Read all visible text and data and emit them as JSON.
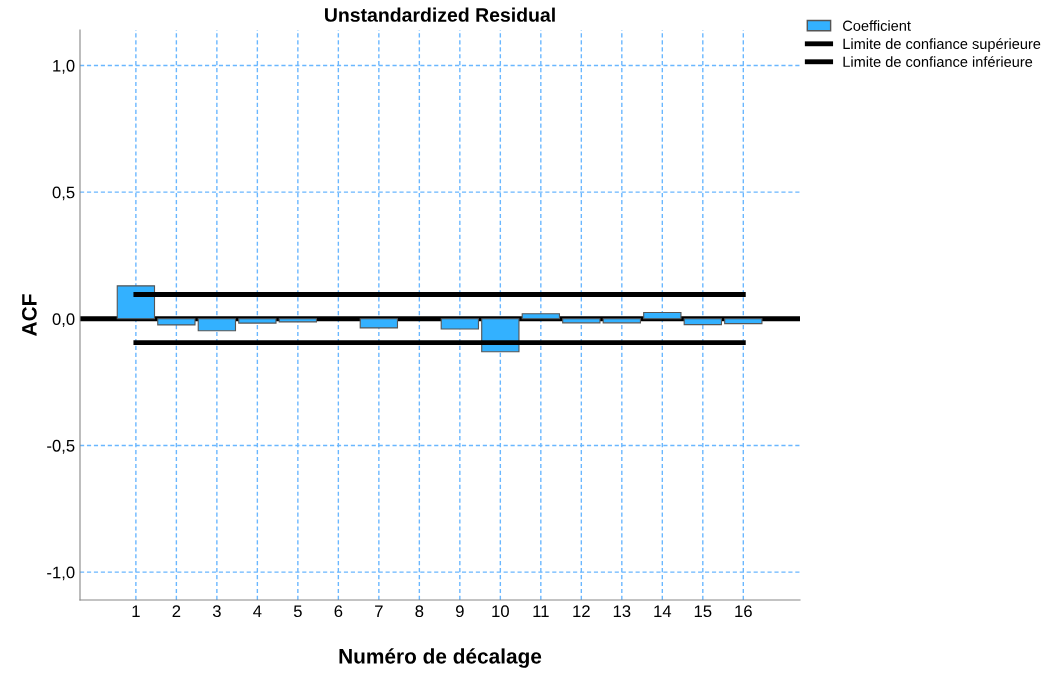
{
  "chart_data": {
    "type": "bar",
    "title": "Unstandardized Residual",
    "xlabel": "Numéro de décalage",
    "ylabel": "ACF",
    "categories": [
      "1",
      "2",
      "3",
      "4",
      "5",
      "6",
      "7",
      "8",
      "9",
      "10",
      "11",
      "12",
      "13",
      "14",
      "15",
      "16"
    ],
    "series": [
      {
        "name": "Coefficient",
        "color": "#33b1ff",
        "values": [
          0.13,
          -0.024,
          -0.047,
          -0.017,
          -0.012,
          null,
          -0.036,
          null,
          -0.04,
          -0.13,
          0.02,
          -0.016,
          -0.016,
          0.025,
          -0.023,
          -0.019
        ]
      },
      {
        "name": "Limite de confiance supérieure",
        "type": "line",
        "color": "#000000",
        "values": [
          0.096,
          0.096,
          0.096,
          0.096,
          0.096,
          0.096,
          0.096,
          0.096,
          0.096,
          0.096,
          0.096,
          0.096,
          0.096,
          0.096,
          0.096,
          0.096
        ]
      },
      {
        "name": "Limite de confiance inférieure",
        "type": "line",
        "color": "#000000",
        "values": [
          -0.094,
          -0.094,
          -0.094,
          -0.094,
          -0.094,
          -0.094,
          -0.094,
          -0.094,
          -0.094,
          -0.094,
          -0.094,
          -0.094,
          -0.094,
          -0.094,
          -0.094,
          -0.094
        ]
      }
    ],
    "ylim": [
      -1.11,
      1.14
    ],
    "yticks": [
      {
        "value": -1.0,
        "label": "-1,0"
      },
      {
        "value": -0.5,
        "label": "-0,5"
      },
      {
        "value": 0.0,
        "label": "0,0"
      },
      {
        "value": 0.5,
        "label": "0,5"
      },
      {
        "value": 1.0,
        "label": "1,0"
      }
    ],
    "ref_lines": [
      {
        "axis": "y",
        "value": 0.0,
        "color": "#000000"
      }
    ],
    "grid": true,
    "legend": "top right",
    "marker": "none",
    "line_style": "solid"
  }
}
